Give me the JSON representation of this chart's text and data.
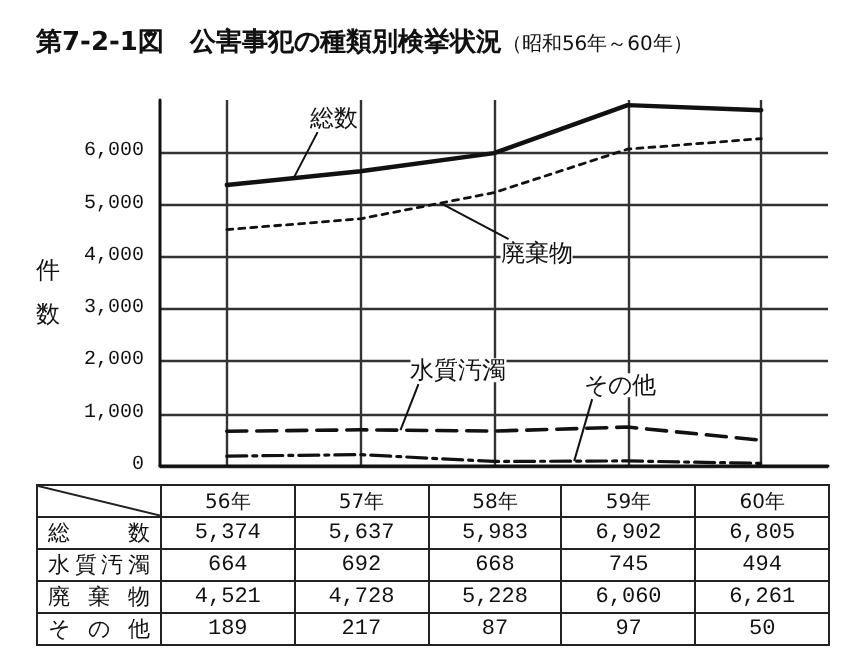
{
  "chart_data": {
    "type": "line",
    "title": "第7-2-1図　公害事犯の種類別検挙状況",
    "subtitle": "（昭和56年～60年）",
    "ylabel": "件数",
    "categories": [
      "56年",
      "57年",
      "58年",
      "59年",
      "60年"
    ],
    "series": [
      {
        "name": "総数",
        "color": "#111111",
        "line_style": "solid",
        "values": [
          5374,
          5637,
          5983,
          6902,
          6805
        ],
        "value_labels": [
          "5,374",
          "5,637",
          "5,983",
          "6,902",
          "6,805"
        ]
      },
      {
        "name": "水質汚濁",
        "color": "#111111",
        "line_style": "dashed",
        "values": [
          664,
          692,
          668,
          745,
          494
        ],
        "value_labels": [
          "664",
          "692",
          "668",
          "745",
          "494"
        ]
      },
      {
        "name": "廃棄物",
        "color": "#111111",
        "line_style": "dotted",
        "values": [
          4521,
          4728,
          5228,
          6060,
          6261
        ],
        "value_labels": [
          "4,521",
          "4,728",
          "5,228",
          "6,060",
          "6,261"
        ]
      },
      {
        "name": "その他",
        "color": "#111111",
        "line_style": "dashdot",
        "values": [
          189,
          217,
          87,
          97,
          50
        ],
        "value_labels": [
          "189",
          "217",
          "87",
          "97",
          "50"
        ]
      }
    ],
    "ylim": [
      0,
      7000
    ],
    "yticks": [
      {
        "value": 0,
        "label": "0"
      },
      {
        "value": 1000,
        "label": "1,000"
      },
      {
        "value": 2000,
        "label": "2,000"
      },
      {
        "value": 3000,
        "label": "3,000"
      },
      {
        "value": 4000,
        "label": "4,000"
      },
      {
        "value": 5000,
        "label": "5,000"
      },
      {
        "value": 6000,
        "label": "6,000"
      }
    ],
    "grid": true,
    "legend": false,
    "marker": "none",
    "tick_labels": "y"
  }
}
